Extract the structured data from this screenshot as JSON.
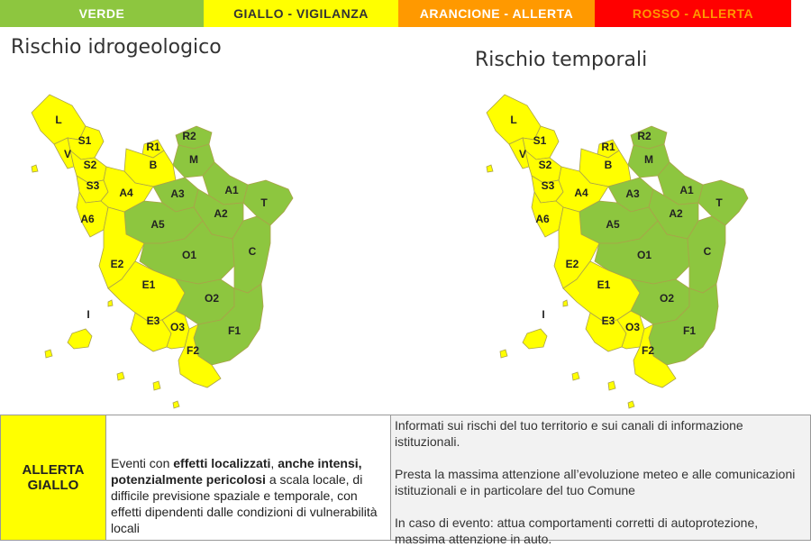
{
  "legend": [
    {
      "label": "VERDE",
      "color": "#8dc63f",
      "text_color": "#ffffff"
    },
    {
      "label": "GIALLO - VIGILANZA",
      "color": "#ffff00",
      "text_color": "#333333"
    },
    {
      "label": "ARANCIONE - ALLERTA",
      "color": "#ff9900",
      "text_color": "#ffffff"
    },
    {
      "label": "ROSSO - ALLERTA",
      "color": "#ff0000",
      "text_color": "#ff9900"
    }
  ],
  "maps": [
    {
      "title": "Rischio idrogeologico",
      "zones": {
        "L": "giallo",
        "S1": "giallo",
        "S2": "giallo",
        "S3": "giallo",
        "V": "giallo",
        "R1": "giallo",
        "B": "giallo",
        "A4": "giallo",
        "A6": "giallo",
        "E2": "giallo",
        "E1": "giallo",
        "E3": "giallo",
        "O3": "giallo",
        "F2": "giallo",
        "I": "giallo",
        "R2": "verde",
        "M": "verde",
        "A3": "verde",
        "A1": "verde",
        "T": "verde",
        "A2": "verde",
        "A5": "verde",
        "O1": "verde",
        "C": "verde",
        "O2": "verde",
        "F1": "verde"
      }
    },
    {
      "title": "Rischio temporali",
      "zones": {
        "L": "giallo",
        "S1": "giallo",
        "S2": "giallo",
        "S3": "giallo",
        "V": "giallo",
        "R1": "giallo",
        "B": "giallo",
        "A4": "giallo",
        "A6": "giallo",
        "E2": "giallo",
        "E1": "giallo",
        "E3": "giallo",
        "O3": "giallo",
        "F2": "giallo",
        "I": "giallo",
        "R2": "verde",
        "M": "verde",
        "A3": "verde",
        "A1": "verde",
        "T": "verde",
        "A2": "verde",
        "A5": "verde",
        "O1": "verde",
        "C": "verde",
        "O2": "verde",
        "F1": "verde"
      }
    }
  ],
  "colors": {
    "verde": "#8dc63f",
    "giallo": "#ffff00"
  },
  "alert": {
    "line1": "ALLERTA",
    "line2": "GIALLO",
    "desc_part1": "Eventi con ",
    "desc_bold1": "effetti localizzati",
    "desc_part2": ", ",
    "desc_bold2": "anche intensi, potenzialmente pericolosi",
    "desc_part3": " a scala locale, di difficile previsione spaziale e temporale, con effetti dipendenti dalle condizioni di vulnerabilità locali"
  },
  "info": [
    "Informati sui rischi del tuo territorio e sui canali di informazione istituzionali.",
    "Presta la massima attenzione all’evoluzione meteo e alle comunicazioni istituzionali e in particolare del tuo Comune",
    "In caso di evento: attua comportamenti corretti di autoprotezione, massima attenzione in auto."
  ]
}
